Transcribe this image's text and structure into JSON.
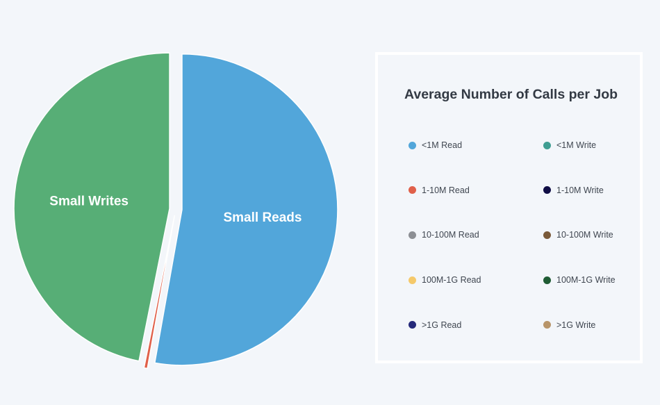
{
  "chart_data": {
    "type": "pie",
    "title": "",
    "slices": [
      {
        "label": "<1M Read",
        "value": 52.8,
        "color": "#52a6da",
        "display_label": "Small Reads"
      },
      {
        "label": "1-10M Read",
        "value": 0.35,
        "color": "#e0604a",
        "display_label": ""
      },
      {
        "label": "10-100M Read",
        "value": 0.0,
        "color": "#8c8f94",
        "display_label": ""
      },
      {
        "label": "100M-1G Read",
        "value": 0.0,
        "color": "#f5c96a",
        "display_label": ""
      },
      {
        "label": ">1G Read",
        "value": 0.0,
        "color": "#25297a",
        "display_label": ""
      },
      {
        "label": "<1M Write",
        "value": 46.85,
        "color": "#57ae76",
        "display_label": "Small Writes"
      },
      {
        "label": "1-10M Write",
        "value": 0.0,
        "color": "#0f0d45",
        "display_label": ""
      },
      {
        "label": "10-100M Write",
        "value": 0.0,
        "color": "#7a5a3a",
        "display_label": ""
      },
      {
        "label": "100M-1G Write",
        "value": 0.0,
        "color": "#1f5c34",
        "display_label": ""
      },
      {
        "label": ">1G Write",
        "value": 0.0,
        "color": "#b8956a",
        "display_label": ""
      }
    ],
    "legend": {
      "title": "Average Number of Calls per Job",
      "placement": "right",
      "items": [
        {
          "label": "<1M Read",
          "color": "#52a6da"
        },
        {
          "label": "<1M Write",
          "color": "#3f9e92"
        },
        {
          "label": "1-10M Read",
          "color": "#e0604a"
        },
        {
          "label": "1-10M Write",
          "color": "#0f0d45"
        },
        {
          "label": "10-100M Read",
          "color": "#8c8f94"
        },
        {
          "label": "10-100M Write",
          "color": "#7a5a3a"
        },
        {
          "label": "100M-1G Read",
          "color": "#f5c96a"
        },
        {
          "label": "100M-1G Write",
          "color": "#1f5c34"
        },
        {
          "label": ">1G Read",
          "color": "#25297a"
        },
        {
          "label": ">1G Write",
          "color": "#b8956a"
        }
      ]
    }
  }
}
